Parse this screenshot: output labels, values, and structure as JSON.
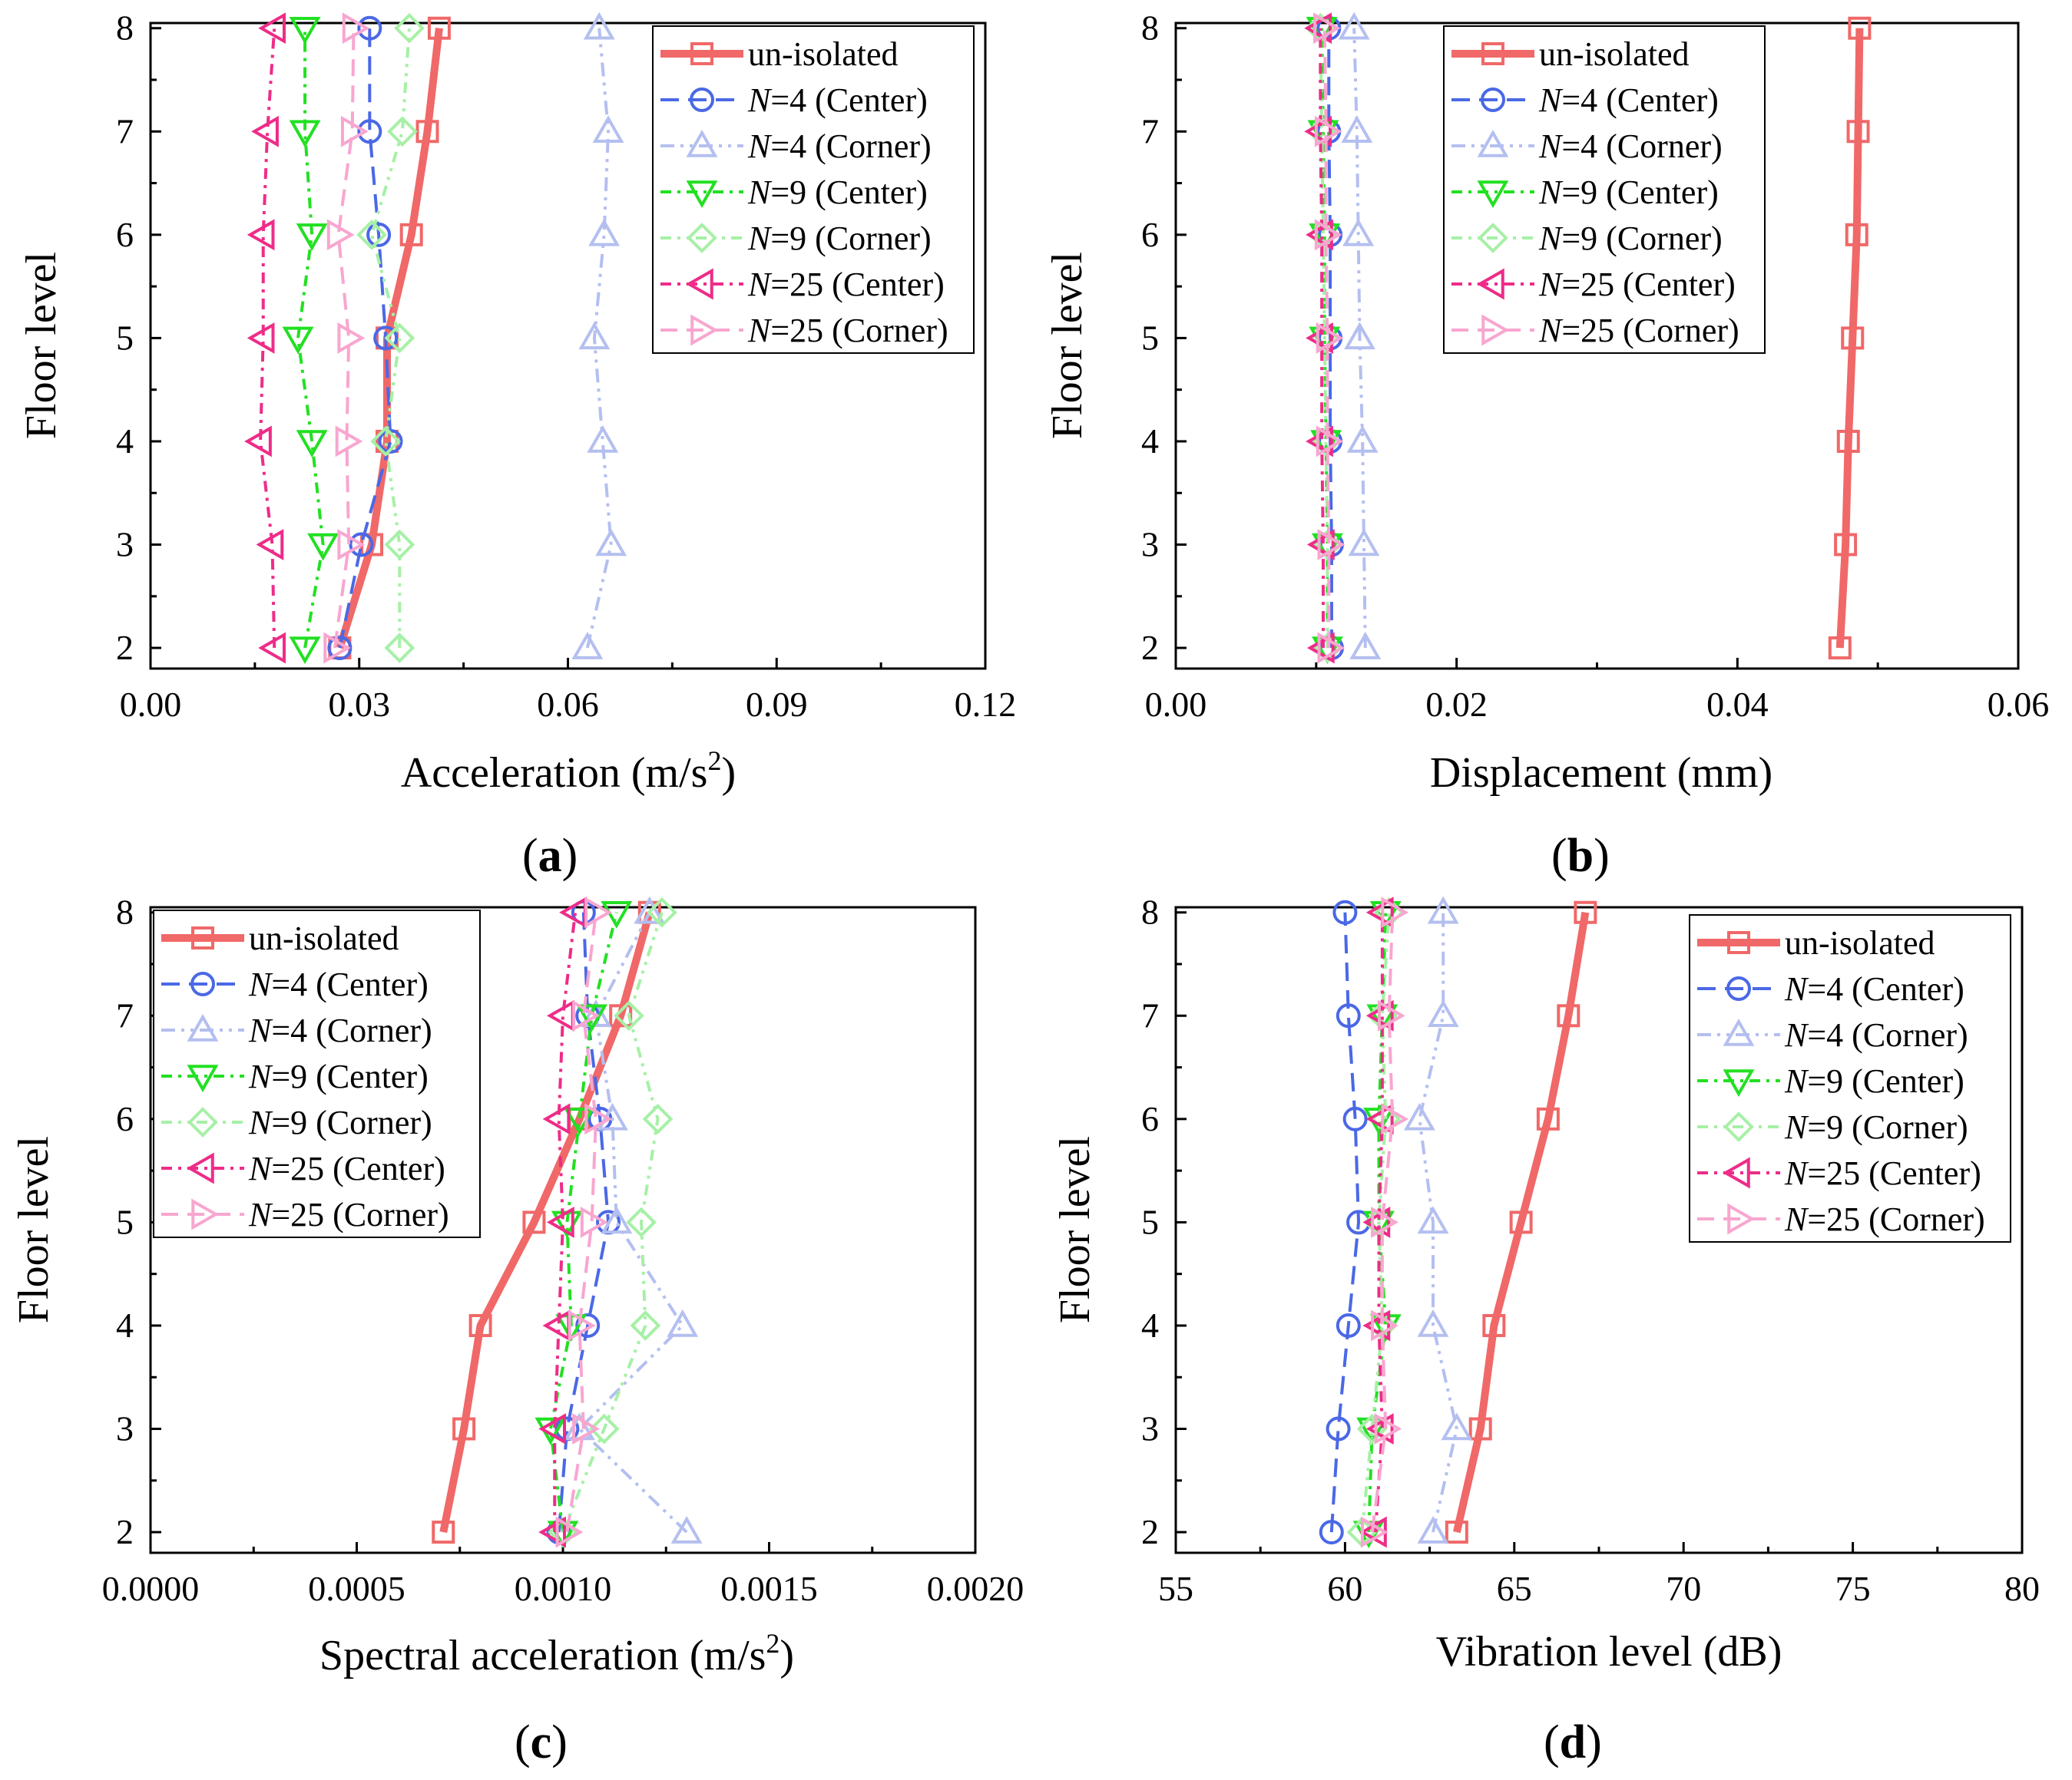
{
  "panel_labels": [
    "(a)",
    "(b)",
    "(c)",
    "(d)"
  ],
  "series_styles": [
    {
      "key": "unisolated",
      "color": "#f06868",
      "marker": "square",
      "dash": "",
      "width": 10
    },
    {
      "key": "n4_center",
      "color": "#4a68e6",
      "marker": "circle",
      "dash": "24,12",
      "width": 4
    },
    {
      "key": "n4_corner",
      "color": "#b4bff0",
      "marker": "triangle-up",
      "dash": "18,8,4,8,4,8",
      "width": 4
    },
    {
      "key": "n9_center",
      "color": "#22e022",
      "marker": "triangle-down",
      "dash": "14,8,4,8",
      "width": 4
    },
    {
      "key": "n9_corner",
      "color": "#a6f0a6",
      "marker": "diamond",
      "dash": "14,8,4,8,4,8",
      "width": 4
    },
    {
      "key": "n25_center",
      "color": "#ee2c88",
      "marker": "triangle-left",
      "dash": "14,8,4,8",
      "width": 4
    },
    {
      "key": "n25_corner",
      "color": "#f8a6d0",
      "marker": "triangle-right",
      "dash": "22,12",
      "width": 4
    }
  ],
  "chart_data": [
    {
      "type": "line",
      "panel": "(a)",
      "xlabel": "Acceleration (m/s",
      "xlabel_sup": "2",
      "xlabel_tail": ")",
      "ylabel": "Floor level",
      "xlim": [
        0,
        0.12
      ],
      "ylim": [
        1.8,
        8.05
      ],
      "xticks": [
        0,
        0.03,
        0.06,
        0.09,
        0.12
      ],
      "xtick_labels": [
        "0.00",
        "0.03",
        "0.06",
        "0.09",
        "0.12"
      ],
      "yticks": [
        2,
        3,
        4,
        5,
        6,
        7,
        8
      ],
      "ytick_labels": [
        "2",
        "3",
        "4",
        "5",
        "6",
        "7",
        "8"
      ],
      "floors": [
        2,
        3,
        4,
        5,
        6,
        7,
        8
      ],
      "legend_position": "top-right",
      "series": [
        {
          "name": "un-isolated",
          "n_prefix": "",
          "n_value": "",
          "suffix": "",
          "values": [
            0.0272,
            0.0318,
            0.034,
            0.034,
            0.0375,
            0.0398,
            0.0415
          ]
        },
        {
          "name": "N=4 (Center)",
          "n_prefix": "N",
          "n_value": "=4",
          "suffix": " (Center)",
          "values": [
            0.0272,
            0.0303,
            0.0345,
            0.0338,
            0.0328,
            0.0315,
            0.0315
          ]
        },
        {
          "name": "N=4 (Corner)",
          "n_prefix": "N",
          "n_value": "=4",
          "suffix": " (Corner)",
          "values": [
            0.0628,
            0.0662,
            0.065,
            0.0638,
            0.0652,
            0.0658,
            0.0645
          ]
        },
        {
          "name": "N=9 (Center)",
          "n_prefix": "N",
          "n_value": "=9",
          "suffix": " (Center)",
          "values": [
            0.0222,
            0.0248,
            0.0232,
            0.0212,
            0.0232,
            0.0222,
            0.0222
          ]
        },
        {
          "name": "N=9 (Corner)",
          "n_prefix": "N",
          "n_value": "=9",
          "suffix": " (Corner)",
          "values": [
            0.0358,
            0.0358,
            0.0338,
            0.0358,
            0.0318,
            0.0362,
            0.0372
          ]
        },
        {
          "name": "N=25 (Center)",
          "n_prefix": "N",
          "n_value": "=25",
          "suffix": " (Center)",
          "values": [
            0.0178,
            0.0175,
            0.0158,
            0.0162,
            0.0162,
            0.0168,
            0.0178
          ]
        },
        {
          "name": "N=25 (Corner)",
          "n_prefix": "N",
          "n_value": "=25",
          "suffix": " (Corner)",
          "values": [
            0.0265,
            0.0285,
            0.0282,
            0.0285,
            0.027,
            0.029,
            0.0292
          ]
        }
      ]
    },
    {
      "type": "line",
      "panel": "(b)",
      "xlabel": "Displacement (mm)",
      "xlabel_sup": "",
      "xlabel_tail": "",
      "ylabel": "Floor level",
      "xlim": [
        0,
        0.06
      ],
      "ylim": [
        1.8,
        8.05
      ],
      "xticks": [
        0,
        0.02,
        0.04,
        0.06
      ],
      "xtick_labels": [
        "0.00",
        "0.02",
        "0.04",
        "0.06"
      ],
      "yticks": [
        2,
        3,
        4,
        5,
        6,
        7,
        8
      ],
      "ytick_labels": [
        "2",
        "3",
        "4",
        "5",
        "6",
        "7",
        "8"
      ],
      "floors": [
        2,
        3,
        4,
        5,
        6,
        7,
        8
      ],
      "legend_position": "top-left",
      "series": [
        {
          "name": "un-isolated",
          "n_prefix": "",
          "n_value": "",
          "suffix": "",
          "values": [
            0.0473,
            0.0477,
            0.0479,
            0.0482,
            0.0485,
            0.0486,
            0.0487
          ]
        },
        {
          "name": "N=4 (Center)",
          "n_prefix": "N",
          "n_value": "=4",
          "suffix": " (Center)",
          "values": [
            0.0111,
            0.0111,
            0.011,
            0.011,
            0.011,
            0.0109,
            0.0109
          ]
        },
        {
          "name": "N=4 (Corner)",
          "n_prefix": "N",
          "n_value": "=4",
          "suffix": " (Corner)",
          "values": [
            0.0135,
            0.0134,
            0.0133,
            0.0131,
            0.013,
            0.0129,
            0.0127
          ]
        },
        {
          "name": "N=9 (Center)",
          "n_prefix": "N",
          "n_value": "=9",
          "suffix": " (Center)",
          "values": [
            0.0108,
            0.0108,
            0.0107,
            0.0106,
            0.0106,
            0.0105,
            0.0104
          ]
        },
        {
          "name": "N=9 (Corner)",
          "n_prefix": "N",
          "n_value": "=9",
          "suffix": " (Corner)",
          "values": [
            0.0108,
            0.0108,
            0.0107,
            0.0106,
            0.0105,
            0.0104,
            0.0103
          ]
        },
        {
          "name": "N=25 (Center)",
          "n_prefix": "N",
          "n_value": "=25",
          "suffix": " (Center)",
          "values": [
            0.0105,
            0.0105,
            0.0104,
            0.0104,
            0.0104,
            0.0103,
            0.0103
          ]
        },
        {
          "name": "N=25 (Corner)",
          "n_prefix": "N",
          "n_value": "=25",
          "suffix": " (Corner)",
          "values": [
            0.0109,
            0.0109,
            0.0108,
            0.0108,
            0.0107,
            0.0107,
            0.0106
          ]
        }
      ]
    },
    {
      "type": "line",
      "panel": "(c)",
      "xlabel": "Spectral acceleration (m/s",
      "xlabel_sup": "2",
      "xlabel_tail": ")",
      "ylabel": "Floor level",
      "xlim": [
        0,
        0.002
      ],
      "ylim": [
        1.8,
        8.05
      ],
      "xticks": [
        0,
        0.0005,
        0.001,
        0.0015,
        0.002
      ],
      "xtick_labels": [
        "0.0000",
        "0.0005",
        "0.0010",
        "0.0015",
        "0.0020"
      ],
      "yticks": [
        2,
        3,
        4,
        5,
        6,
        7,
        8
      ],
      "ytick_labels": [
        "2",
        "3",
        "4",
        "5",
        "6",
        "7",
        "8"
      ],
      "floors": [
        2,
        3,
        4,
        5,
        6,
        7,
        8
      ],
      "legend_position": "top-left",
      "series": [
        {
          "name": "un-isolated",
          "n_prefix": "",
          "n_value": "",
          "suffix": "",
          "values": [
            0.00071,
            0.00076,
            0.0008,
            0.00093,
            0.00104,
            0.00114,
            0.00121
          ]
        },
        {
          "name": "N=4 (Center)",
          "n_prefix": "N",
          "n_value": "=4",
          "suffix": " (Center)",
          "values": [
            0.00099,
            0.00101,
            0.00106,
            0.00111,
            0.00109,
            0.00106,
            0.00105
          ]
        },
        {
          "name": "N=4 (Corner)",
          "n_prefix": "N",
          "n_value": "=4",
          "suffix": " (Corner)",
          "values": [
            0.0013,
            0.00104,
            0.00129,
            0.00113,
            0.00112,
            0.00108,
            0.00121
          ]
        },
        {
          "name": "N=9 (Center)",
          "n_prefix": "N",
          "n_value": "=9",
          "suffix": " (Center)",
          "values": [
            0.001,
            0.00097,
            0.00102,
            0.00101,
            0.00104,
            0.00107,
            0.00113
          ]
        },
        {
          "name": "N=9 (Corner)",
          "n_prefix": "N",
          "n_value": "=9",
          "suffix": " (Corner)",
          "values": [
            0.001,
            0.0011,
            0.0012,
            0.00119,
            0.00123,
            0.00116,
            0.00124
          ]
        },
        {
          "name": "N=25 (Center)",
          "n_prefix": "N",
          "n_value": "=25",
          "suffix": " (Center)",
          "values": [
            0.00098,
            0.00098,
            0.00099,
            0.001,
            0.00099,
            0.001,
            0.00103
          ]
        },
        {
          "name": "N=25 (Corner)",
          "n_prefix": "N",
          "n_value": "=25",
          "suffix": " (Corner)",
          "values": [
            0.00101,
            0.00105,
            0.00104,
            0.00107,
            0.00108,
            0.00105,
            0.00108
          ]
        }
      ]
    },
    {
      "type": "line",
      "panel": "(d)",
      "xlabel": "Vibration level (dB)",
      "xlabel_sup": "",
      "xlabel_tail": "",
      "ylabel": "Floor level",
      "xlim": [
        55,
        80
      ],
      "ylim": [
        1.8,
        8.05
      ],
      "xticks": [
        55,
        60,
        65,
        70,
        75,
        80
      ],
      "xtick_labels": [
        "55",
        "60",
        "65",
        "70",
        "75",
        "80"
      ],
      "yticks": [
        2,
        3,
        4,
        5,
        6,
        7,
        8
      ],
      "ytick_labels": [
        "2",
        "3",
        "4",
        "5",
        "6",
        "7",
        "8"
      ],
      "floors": [
        2,
        3,
        4,
        5,
        6,
        7,
        8
      ],
      "legend_position": "top-right",
      "series": [
        {
          "name": "un-isolated",
          "n_prefix": "",
          "n_value": "",
          "suffix": "",
          "values": [
            63.3,
            64.0,
            64.4,
            65.2,
            66.0,
            66.6,
            67.1
          ]
        },
        {
          "name": "N=4 (Center)",
          "n_prefix": "N",
          "n_value": "=4",
          "suffix": " (Center)",
          "values": [
            59.6,
            59.8,
            60.1,
            60.4,
            60.3,
            60.1,
            60.0
          ]
        },
        {
          "name": "N=4 (Corner)",
          "n_prefix": "N",
          "n_value": "=4",
          "suffix": " (Corner)",
          "values": [
            62.6,
            63.3,
            62.6,
            62.6,
            62.2,
            62.9,
            62.9
          ]
        },
        {
          "name": "N=9 (Center)",
          "n_prefix": "N",
          "n_value": "=9",
          "suffix": " (Center)",
          "values": [
            60.7,
            60.8,
            61.2,
            61.0,
            61.0,
            61.1,
            61.2
          ]
        },
        {
          "name": "N=9 (Corner)",
          "n_prefix": "N",
          "n_value": "=9",
          "suffix": " (Corner)",
          "values": [
            60.5,
            60.8,
            61.1,
            61.0,
            61.2,
            61.1,
            61.3
          ]
        },
        {
          "name": "N=25 (Center)",
          "n_prefix": "N",
          "n_value": "=25",
          "suffix": " (Center)",
          "values": [
            60.9,
            61.1,
            61.0,
            61.0,
            61.1,
            61.1,
            61.1
          ]
        },
        {
          "name": "N=25 (Corner)",
          "n_prefix": "N",
          "n_value": "=25",
          "suffix": " (Corner)",
          "values": [
            60.8,
            61.2,
            61.1,
            61.1,
            61.4,
            61.3,
            61.4
          ]
        }
      ]
    }
  ]
}
